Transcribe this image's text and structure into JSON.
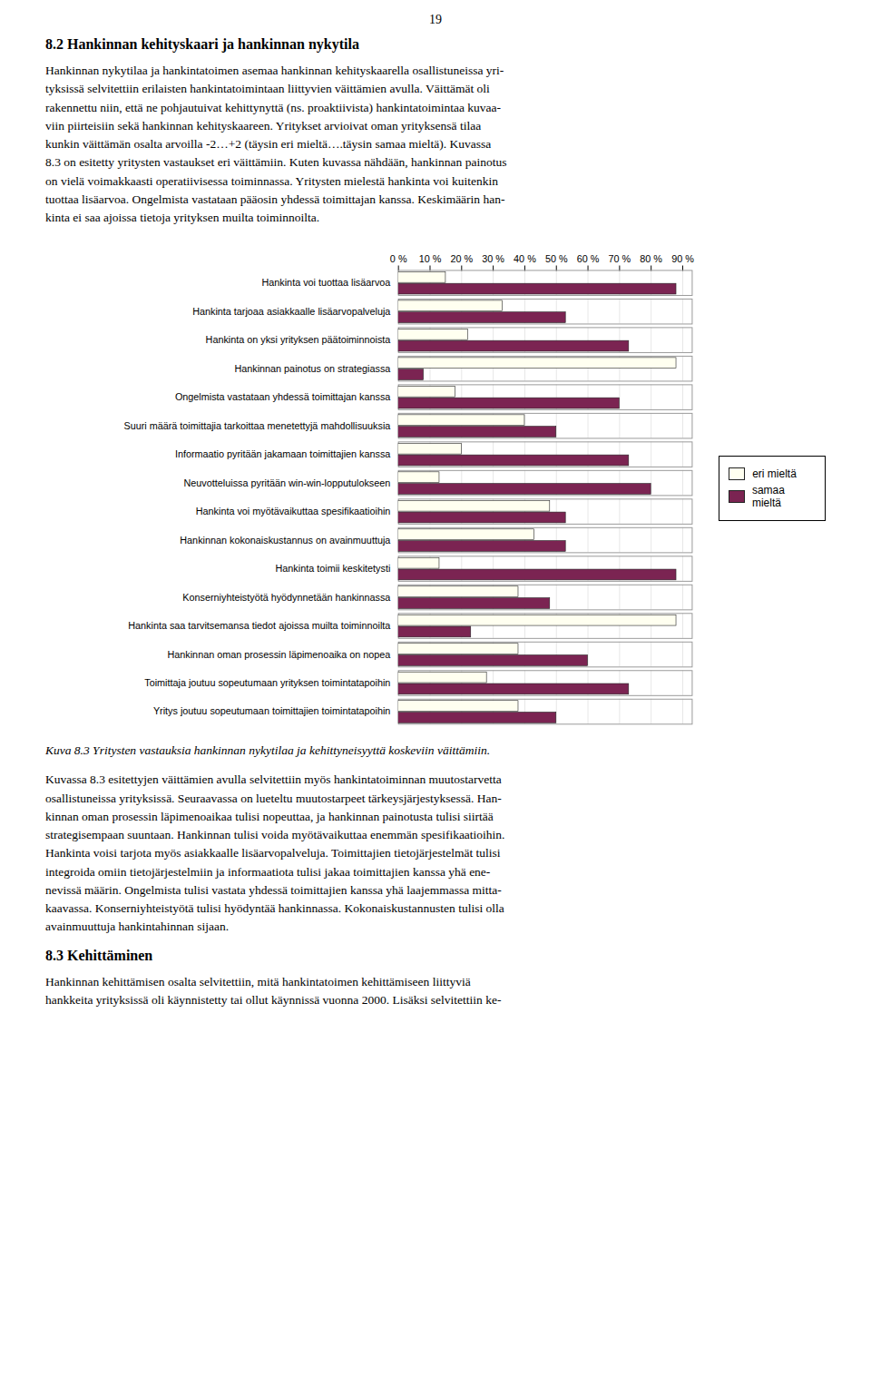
{
  "chart_data": {
    "type": "bar",
    "orientation": "horizontal",
    "title": "Kuva 8.3 Yritysten vastauksia hankinnan nykytilaa ja kehittyneisyyttä koskeviin väittämiin.",
    "annotations": [
      "19",
      "8.2  Hankinnan kehityskaari ja hankinnan nykytila",
      "Hankinnan nykytilaa ja hankintatoimen asemaa hankinnan kehityskaarella osallistuneissa yri-\ntyksissä selvitettiin erilaisten hankintatoimintaan liittyvien väittämien avulla. Väittämät oli\nrakennettu niin, että ne pohjautuivat kehittynyttä (ns. proaktiivista) hankintatoimintaa kuvaa-\nviin piirteisiin sekä hankinnan kehityskaareen. Yritykset arvioivat oman yrityksensä tilaa\nkunkin väittämän osalta arvoilla -2…+2 (täysin eri mieltä….täysin samaa mieltä). Kuvassa\n8.3 on esitetty yritysten vastaukset eri väittämiin. Kuten kuvassa nähdään, hankinnan painotus\non vielä voimakkaasti operatiivisessa toiminnassa. Yritysten mielestä hankinta voi kuitenkin\ntuottaa lisäarvoa. Ongelmista vastataan pääosin yhdessä toimittajan kanssa. Keskimäärin han-\nkinta ei saa ajoissa tietoja yrityksen muilta toiminnoilta.",
      "Kuvassa 8.3 esitettyjen väittämien avulla selvitettiin myös hankintatoiminnan muutostarvetta\nosallistuneissa yrityksissä. Seuraavassa on lueteltu muutostarpeet tärkeysjärjestyksessä. Han-\nkinnan oman prosessin läpimenoaikaa tulisi nopeuttaa, ja hankinnan painotusta tulisi siirtää\nstrategisempaan suuntaan. Hankinnan tulisi voida myötävaikuttaa enemmän spesifikaatioihin.\nHankinta voisi tarjota myös asiakkaalle lisäarvopalveluja. Toimittajien tietojärjestelmät tulisi\nintegroida omiin tietojärjestelmiin ja informaatiota tulisi jakaa toimittajien kanssa yhä ene-\nnevissä määrin. Ongelmista tulisi vastata yhdessä toimittajien kanssa yhä laajemmassa mitta-\nkaavassa. Konserniyhteistyötä tulisi hyödyntää hankinnassa. Kokonaiskustannusten tulisi olla\navainmuuttuja hankintahinnan sijaan.",
      "8.3  Kehittäminen",
      "Hankinnan kehittämisen osalta selvitettiin, mitä hankintatoimen kehittämiseen liittyviä\nhankkeita yrityksissä oli käynnistetty tai ollut käynnissä vuonna 2000. Lisäksi selvitettiin ke-"
    ],
    "categories": [
      "Hankinta voi tuottaa lisäarvoa",
      "Hankinta tarjoaa asiakkaalle lisäarvopalveluja",
      "Hankinta on yksi yrityksen päätoiminnoista",
      "Hankinnan painotus on strategiassa",
      "Ongelmista vastataan yhdessä toimittajan kanssa",
      "Suuri määrä toimittajia tarkoittaa menetettyjä mahdollisuuksia",
      "Informaatio pyritään jakamaan toimittajien kanssa",
      "Neuvotteluissa pyritään win-win-lopputulokseen",
      "Hankinta voi myötävaikuttaa spesifikaatioihin",
      "Hankinnan kokonaiskustannus on avainmuuttuja",
      "Hankinta toimii keskitetysti",
      "Konserniyhteistyötä hyödynnetään hankinnassa",
      "Hankinta saa tarvitsemansa tiedot ajoissa muilta toiminnoilta",
      "Hankinnan oman prosessin läpimenoaika on nopea",
      "Toimittaja joutuu sopeutumaan yrityksen toimintatapoihin",
      "Yritys joutuu sopeutumaan toimittajien toimintatapoihin"
    ],
    "series": [
      {
        "name": "eri mieltä",
        "color": "#FFFFF0",
        "values": [
          15,
          33,
          22,
          88,
          18,
          40,
          20,
          13,
          48,
          43,
          13,
          38,
          88,
          38,
          28,
          38
        ]
      },
      {
        "name": "samaa mieltä",
        "color": "#7B2452",
        "values": [
          88,
          53,
          73,
          8,
          70,
          50,
          73,
          80,
          53,
          53,
          88,
          48,
          23,
          60,
          73,
          50
        ]
      }
    ],
    "xlim": [
      0,
      93
    ],
    "xticks": [
      {
        "value": 0,
        "label": "0 %"
      },
      {
        "value": 10,
        "label": "10 %"
      },
      {
        "value": 20,
        "label": "20 %"
      },
      {
        "value": 30,
        "label": "30 %"
      },
      {
        "value": 40,
        "label": "40 %"
      },
      {
        "value": 50,
        "label": "50 %"
      },
      {
        "value": 60,
        "label": "60 %"
      },
      {
        "value": 70,
        "label": "70 %"
      },
      {
        "value": 80,
        "label": "80 %"
      },
      {
        "value": 90,
        "label": "90 %"
      }
    ],
    "grid": true,
    "legend": "right"
  }
}
